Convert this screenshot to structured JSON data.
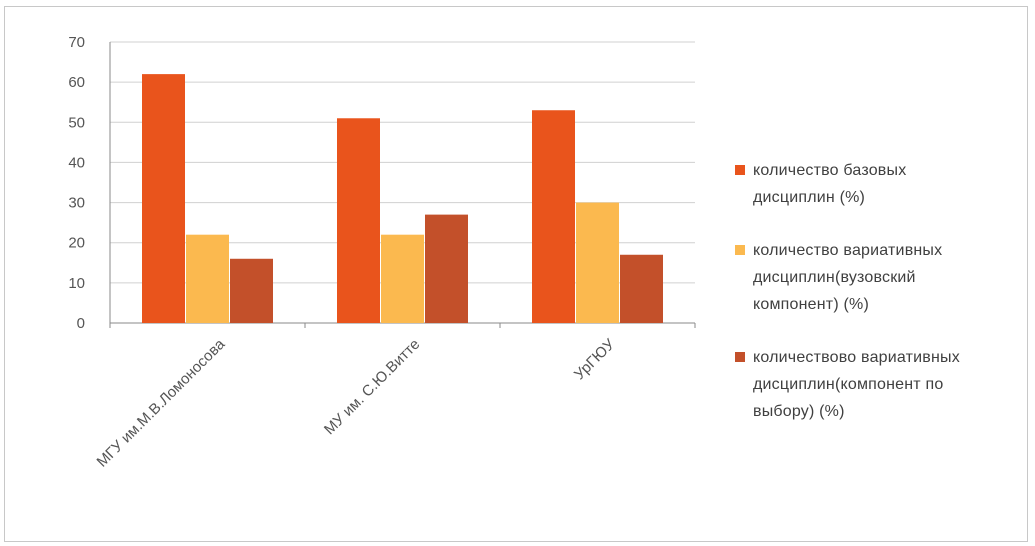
{
  "chart_data": {
    "type": "bar",
    "categories": [
      "МГУ им.М.В.Ломоносова",
      "МУ им. С.Ю.Витте",
      "УрГЮУ"
    ],
    "series": [
      {
        "name": "количество базовых дисциплин (%)",
        "color": "#e9541c",
        "values": [
          62,
          51,
          53
        ]
      },
      {
        "name": "количество вариативных дисциплин(вузовский компонент) (%)",
        "color": "#fbb94f",
        "values": [
          22,
          22,
          30
        ]
      },
      {
        "name": "количествово вариативных дисциплин(компонент по выбору) (%)",
        "color": "#c3502a",
        "values": [
          16,
          27,
          17
        ]
      }
    ],
    "ylim": [
      0,
      70
    ],
    "yticks": [
      0,
      10,
      20,
      30,
      40,
      50,
      60,
      70
    ],
    "grid": true,
    "legend_position": "right",
    "title": "",
    "xlabel": "",
    "ylabel": ""
  },
  "legend": [
    {
      "lines": [
        "количество базовых",
        "дисциплин (%)"
      ]
    },
    {
      "lines": [
        "количество вариативных",
        "дисциплин(вузовский",
        "компонент) (%)"
      ]
    },
    {
      "lines": [
        "количествово вариативных",
        "дисциплин(компонент по",
        "выбору) (%)"
      ]
    }
  ]
}
